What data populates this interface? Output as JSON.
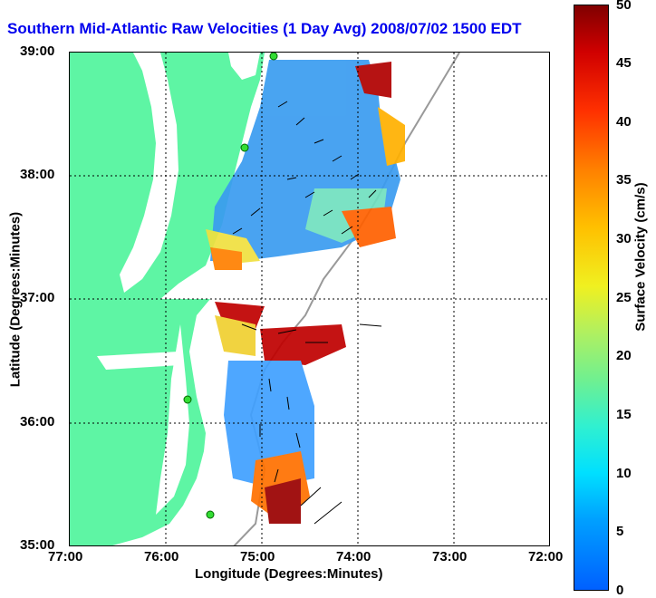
{
  "title": "Southern Mid-Atlantic Raw Velocities (1 Day Avg) 2008/07/02 1500 EDT",
  "axes": {
    "xlabel": "Longitude (Degrees:Minutes)",
    "ylabel": "Latitude (Degrees:Minutes)",
    "xticks": [
      "77:00",
      "76:00",
      "75:00",
      "74:00",
      "73:00",
      "72:00"
    ],
    "yticks": [
      "39:00",
      "38:00",
      "37:00",
      "36:00",
      "35:00"
    ]
  },
  "colorbar": {
    "label": "Surface Velocity (cm/s)",
    "ticks": [
      "50",
      "45",
      "40",
      "35",
      "30",
      "25",
      "20",
      "15",
      "10",
      "5",
      "0"
    ],
    "range": [
      0,
      50
    ],
    "colors": [
      "#0060ff",
      "#00e0ff",
      "#70f090",
      "#f0f020",
      "#ff8000",
      "#d00000",
      "#800000"
    ]
  },
  "colors": {
    "land": "#5ef5a4",
    "grid": "#000000",
    "bathymetry": "#999999",
    "title": "#0000ee"
  }
}
